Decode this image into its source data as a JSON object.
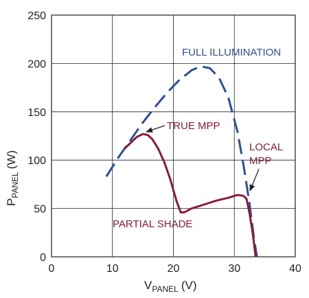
{
  "chart_data": {
    "type": "line",
    "xlabel": {
      "main": "V",
      "sub": "PANEL",
      "unit": "(V)"
    },
    "ylabel": {
      "main": "P",
      "sub": "PANEL",
      "unit": "(W)"
    },
    "xlim": [
      0,
      40
    ],
    "ylim": [
      0,
      250
    ],
    "x_ticks": [
      0,
      10,
      20,
      30,
      40
    ],
    "y_ticks": [
      0,
      50,
      100,
      150,
      200,
      250
    ],
    "grid": true,
    "series": [
      {
        "name": "FULL ILLUMINATION",
        "color": "#2a4f9c",
        "style": "dashed",
        "x": [
          9,
          11,
          13,
          15,
          17,
          19,
          21,
          23,
          24.5,
          26,
          27.5,
          29,
          30.5,
          31.5,
          32.5,
          33.2,
          33.7
        ],
        "y": [
          83,
          103,
          121,
          139,
          155,
          170,
          183,
          193,
          197,
          195,
          185,
          165,
          130,
          95,
          55,
          20,
          0
        ]
      },
      {
        "name": "PARTIAL SHADE",
        "color": "#8b1a3a",
        "style": "solid",
        "x": [
          12,
          13,
          14,
          15,
          15.8,
          16.5,
          17.5,
          18.5,
          19.5,
          20.5,
          21.2,
          21.8,
          23,
          25,
          27,
          29,
          30.5,
          31.5,
          32,
          32.5,
          33,
          33.5
        ],
        "y": [
          112,
          118,
          124,
          127,
          126,
          122,
          112,
          98,
          80,
          58,
          46,
          46,
          50,
          54,
          58,
          61,
          64,
          63,
          60,
          45,
          25,
          0
        ]
      }
    ],
    "annotations": [
      {
        "text": "FULL ILLUMINATION",
        "color": "#2a4f9c"
      },
      {
        "text": "TRUE MPP",
        "color": "#8b1a3a",
        "point": [
          15.5,
          127
        ]
      },
      {
        "text": "LOCAL",
        "color": "#8b1a3a",
        "point": [
          32,
          63
        ]
      },
      {
        "text": "MPP",
        "color": "#8b1a3a"
      },
      {
        "text": "PARTIAL SHADE",
        "color": "#8b1a3a"
      }
    ]
  }
}
